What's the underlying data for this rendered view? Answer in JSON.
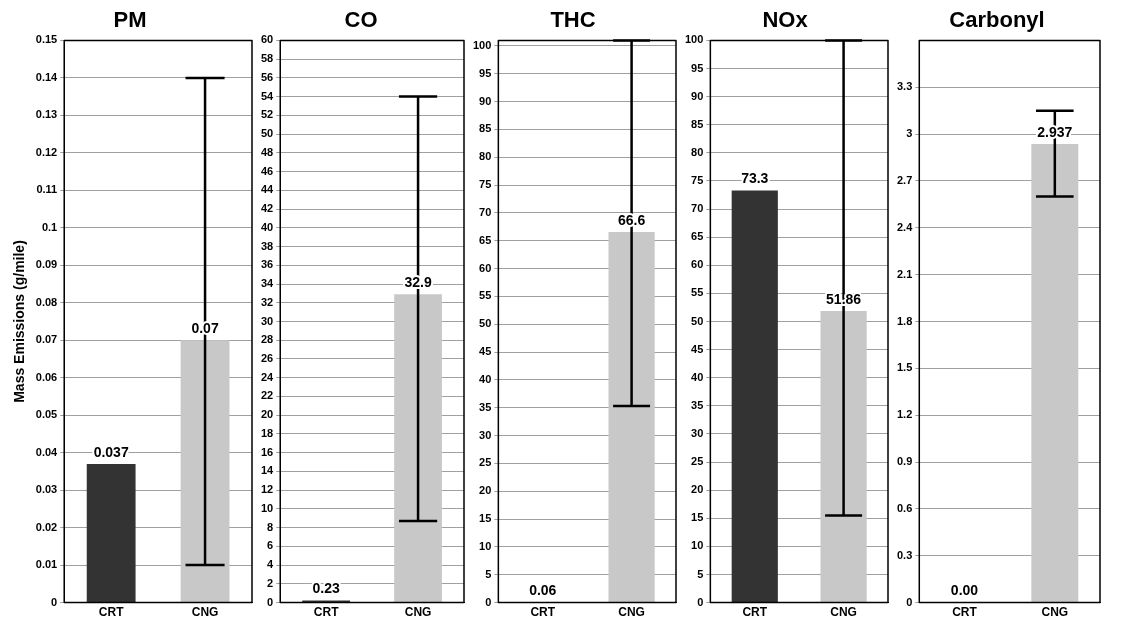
{
  "chart_data": [
    {
      "type": "bar",
      "title": "PM",
      "ylabel": "Mass Emissions (g/mile)",
      "categories": [
        "CRT",
        "CNG"
      ],
      "colors": [
        "#333333",
        "#c8c8c8"
      ],
      "values": [
        0.037,
        0.07
      ],
      "value_labels": [
        "0.037",
        "0.07"
      ],
      "errors": [
        null,
        [
          0.01,
          0.14
        ]
      ],
      "ylim": [
        0,
        0.15
      ],
      "yticks": [
        0,
        0.01,
        0.02,
        0.03,
        0.04,
        0.05,
        0.06,
        0.07,
        0.08,
        0.09,
        0.1,
        0.11,
        0.12,
        0.13,
        0.14,
        0.15
      ],
      "grid": "y",
      "legend": false
    },
    {
      "type": "bar",
      "title": "CO",
      "categories": [
        "CRT",
        "CNG"
      ],
      "colors": [
        "#333333",
        "#c8c8c8"
      ],
      "values": [
        0.23,
        32.9
      ],
      "value_labels": [
        "0.23",
        "32.9"
      ],
      "errors": [
        null,
        [
          8.7,
          54
        ]
      ],
      "ylim": [
        0,
        60
      ],
      "yticks": [
        0,
        2,
        4,
        6,
        8,
        10,
        12,
        14,
        16,
        18,
        20,
        22,
        24,
        26,
        28,
        30,
        32,
        34,
        36,
        38,
        40,
        42,
        44,
        46,
        48,
        50,
        52,
        54,
        56,
        58,
        60
      ],
      "grid": "y",
      "legend": false
    },
    {
      "type": "bar",
      "title": "THC",
      "categories": [
        "CRT",
        "CNG"
      ],
      "colors": [
        "#333333",
        "#c8c8c8"
      ],
      "values": [
        0.06,
        66.6
      ],
      "value_labels": [
        "0.06",
        "66.6"
      ],
      "errors": [
        null,
        [
          35.3,
          101
        ]
      ],
      "ylim": [
        0,
        101
      ],
      "yticks": [
        0,
        5,
        10,
        15,
        20,
        25,
        30,
        35,
        40,
        45,
        50,
        55,
        60,
        65,
        70,
        75,
        80,
        85,
        90,
        95,
        100
      ],
      "grid": "y",
      "legend": false
    },
    {
      "type": "bar",
      "title": "NOx",
      "categories": [
        "CRT",
        "CNG"
      ],
      "colors": [
        "#333333",
        "#c8c8c8"
      ],
      "values": [
        73.3,
        51.86
      ],
      "value_labels": [
        "73.3",
        "51.86"
      ],
      "errors": [
        null,
        [
          15.5,
          100
        ]
      ],
      "ylim": [
        0,
        100
      ],
      "yticks": [
        0,
        5,
        10,
        15,
        20,
        25,
        30,
        35,
        40,
        45,
        50,
        55,
        60,
        65,
        70,
        75,
        80,
        85,
        90,
        95,
        100
      ],
      "grid": "y",
      "legend": false
    },
    {
      "type": "bar",
      "title": "Carbonyl",
      "categories": [
        "CRT",
        "CNG"
      ],
      "colors": [
        "#333333",
        "#c8c8c8"
      ],
      "values": [
        0,
        2.937
      ],
      "value_labels": [
        "0.00",
        "2.937"
      ],
      "errors": [
        null,
        [
          2.6,
          3.15
        ]
      ],
      "ylim": [
        0,
        3.6
      ],
      "yticks": [
        0,
        0.3,
        0.6,
        0.9,
        1.2,
        1.5,
        1.8,
        2.1,
        2.4,
        2.7,
        3,
        3.3
      ],
      "grid": "y",
      "legend": false
    }
  ]
}
